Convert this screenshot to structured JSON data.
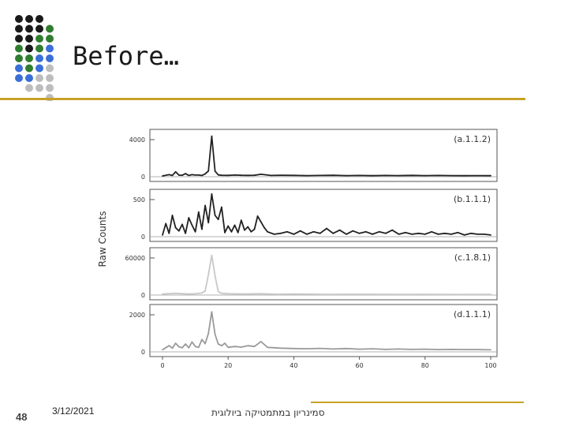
{
  "slide": {
    "title": "Before…",
    "page_number": "48",
    "date": "3/12/2021",
    "footer_text": "סמינריון במתמטיקה ביולוגית"
  },
  "theme": {
    "accent_gold": "#c9a227",
    "dot_colors": [
      "#1a1a1a",
      "#2f7d2f",
      "#3a6fd8",
      "#bdbdbd"
    ]
  },
  "chart_data": {
    "type": "line",
    "ylabel": "Raw Counts",
    "xlim": [
      0,
      100
    ],
    "x_ticks": [
      "0",
      "20",
      "40",
      "60",
      "80",
      "100"
    ],
    "panels": [
      {
        "label": "(a.1.1.2)",
        "yticks": [
          "4000",
          "0"
        ],
        "ymax": 4000,
        "color": "#222222",
        "x": [
          0,
          2,
          3,
          4,
          5,
          6,
          7,
          8,
          9,
          10,
          11,
          12,
          13,
          14,
          15,
          16,
          17,
          18,
          20,
          22,
          24,
          26,
          28,
          30,
          33,
          36,
          40,
          44,
          48,
          52,
          56,
          60,
          64,
          68,
          72,
          76,
          80,
          84,
          88,
          92,
          96,
          100
        ],
        "values": [
          80,
          200,
          120,
          480,
          150,
          140,
          300,
          120,
          200,
          160,
          160,
          120,
          280,
          560,
          3950,
          550,
          180,
          140,
          130,
          160,
          140,
          130,
          140,
          240,
          120,
          140,
          130,
          110,
          120,
          140,
          110,
          120,
          100,
          120,
          110,
          130,
          110,
          120,
          110,
          100,
          110,
          100
        ]
      },
      {
        "label": "(b.1.1.1)",
        "yticks": [
          "500",
          "0"
        ],
        "ymax": 500,
        "color": "#222222",
        "x": [
          0,
          1,
          2,
          3,
          4,
          5,
          6,
          7,
          8,
          9,
          10,
          11,
          12,
          13,
          14,
          15,
          16,
          17,
          18,
          19,
          20,
          21,
          22,
          23,
          24,
          25,
          26,
          27,
          28,
          29,
          30,
          31,
          32,
          34,
          36,
          38,
          40,
          42,
          44,
          46,
          48,
          50,
          52,
          54,
          56,
          58,
          60,
          62,
          64,
          66,
          68,
          70,
          72,
          74,
          76,
          78,
          80,
          82,
          84,
          86,
          88,
          90,
          92,
          94,
          96,
          98,
          100
        ],
        "values": [
          20,
          160,
          40,
          260,
          110,
          70,
          150,
          40,
          230,
          140,
          60,
          300,
          90,
          380,
          170,
          520,
          260,
          210,
          360,
          50,
          130,
          60,
          140,
          50,
          200,
          80,
          120,
          60,
          90,
          250,
          180,
          110,
          60,
          30,
          40,
          60,
          30,
          70,
          30,
          60,
          40,
          100,
          40,
          80,
          30,
          70,
          40,
          60,
          30,
          60,
          40,
          80,
          30,
          50,
          30,
          40,
          30,
          60,
          30,
          40,
          30,
          50,
          20,
          40,
          30,
          30,
          20
        ]
      },
      {
        "label": "(c.1.8.1)",
        "yticks": [
          "60000",
          "0"
        ],
        "ymax": 60000,
        "color": "#c8c8c8",
        "x": [
          0,
          4,
          8,
          10,
          12,
          13,
          14,
          15,
          16,
          17,
          18,
          20,
          25,
          30,
          35,
          40,
          50,
          60,
          70,
          80,
          90,
          100
        ],
        "values": [
          1500,
          2500,
          1500,
          2000,
          3000,
          6000,
          30000,
          58000,
          28000,
          5000,
          2500,
          2000,
          1500,
          2000,
          1200,
          1500,
          1000,
          1200,
          900,
          1000,
          800,
          900
        ]
      },
      {
        "label": "(d.1.1.1)",
        "yticks": [
          "2000",
          "0"
        ],
        "ymax": 2000,
        "color": "#9a9a9a",
        "x": [
          0,
          2,
          3,
          4,
          5,
          6,
          7,
          8,
          9,
          10,
          11,
          12,
          13,
          14,
          15,
          16,
          17,
          18,
          19,
          20,
          22,
          24,
          26,
          28,
          30,
          32,
          34,
          36,
          40,
          44,
          48,
          52,
          56,
          60,
          64,
          68,
          72,
          76,
          80,
          84,
          88,
          92,
          96,
          100
        ],
        "values": [
          100,
          300,
          180,
          420,
          250,
          200,
          380,
          200,
          480,
          260,
          220,
          600,
          400,
          900,
          1950,
          850,
          380,
          300,
          420,
          220,
          260,
          230,
          300,
          260,
          500,
          220,
          200,
          180,
          160,
          150,
          170,
          140,
          160,
          130,
          150,
          120,
          140,
          120,
          130,
          110,
          120,
          110,
          110,
          100
        ]
      }
    ]
  }
}
